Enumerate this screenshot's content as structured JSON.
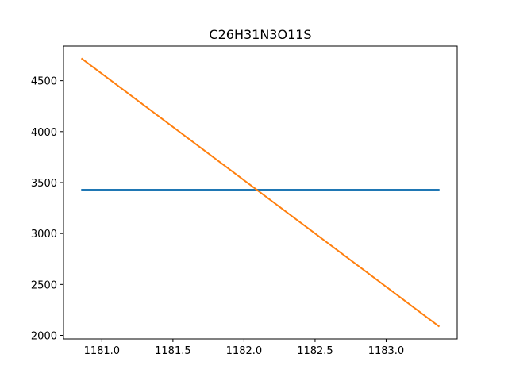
{
  "chart_data": {
    "type": "line",
    "title": "C26H31N3O11S",
    "xlabel": "",
    "ylabel": "",
    "xlim": [
      1180.73,
      1183.5
    ],
    "ylim": [
      1965,
      4840
    ],
    "grid": false,
    "legend": "none",
    "x_ticks": [
      1181.0,
      1181.5,
      1182.0,
      1182.5,
      1183.0
    ],
    "x_tick_labels": [
      "1181.0",
      "1181.5",
      "1182.0",
      "1182.5",
      "1183.0"
    ],
    "y_ticks": [
      2000,
      2500,
      3000,
      3500,
      4000,
      4500
    ],
    "y_tick_labels": [
      "2000",
      "2500",
      "3000",
      "3500",
      "4000",
      "4500"
    ],
    "series": [
      {
        "color": "#1f77b4",
        "x": [
          1180.86,
          1183.37
        ],
        "y": [
          3430,
          3430
        ]
      },
      {
        "color": "#ff7f0e",
        "x": [
          1180.86,
          1183.37
        ],
        "y": [
          4715,
          2090
        ]
      }
    ]
  }
}
